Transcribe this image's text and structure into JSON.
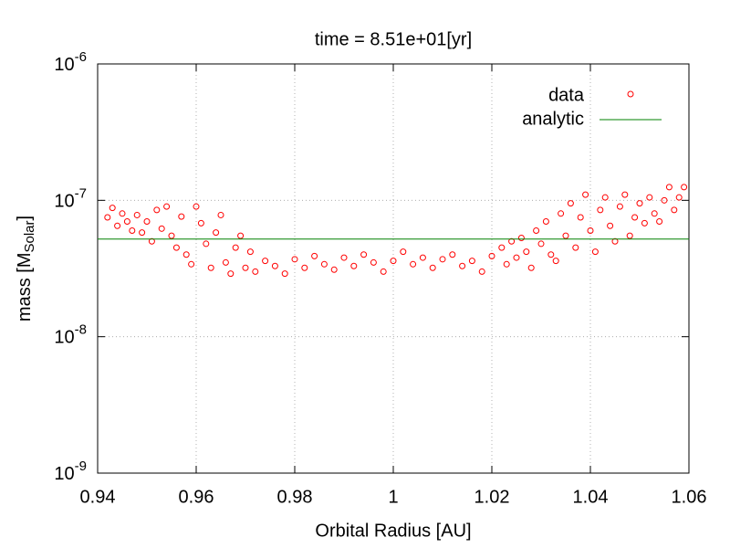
{
  "chart_data": {
    "type": "scatter",
    "title": "time = 8.51e+01[yr]",
    "xlabel": "Orbital Radius [AU]",
    "ylabel": [
      "mass [M",
      "Solar",
      "]"
    ],
    "xlim": [
      0.94,
      1.06
    ],
    "xticks": [
      0.94,
      0.96,
      0.98,
      1,
      1.02,
      1.04,
      1.06
    ],
    "ylim": [
      1e-09,
      1e-06
    ],
    "ylog": true,
    "yticks": [
      {
        "value": 1e-09,
        "label": "10",
        "exponent": "-9"
      },
      {
        "value": 1e-08,
        "label": "10",
        "exponent": "-8"
      },
      {
        "value": 1e-07,
        "label": "10",
        "exponent": "-7"
      },
      {
        "value": 1e-06,
        "label": "10",
        "exponent": "-6"
      }
    ],
    "grid": true,
    "legend": "top-right",
    "series": [
      {
        "name": "data",
        "color": "#ff0000",
        "style": "circle",
        "x": [
          0.942,
          0.943,
          0.944,
          0.945,
          0.946,
          0.947,
          0.948,
          0.949,
          0.95,
          0.951,
          0.952,
          0.953,
          0.954,
          0.955,
          0.956,
          0.957,
          0.958,
          0.959,
          0.96,
          0.961,
          0.962,
          0.963,
          0.964,
          0.965,
          0.966,
          0.967,
          0.968,
          0.969,
          0.97,
          0.971,
          0.972,
          0.974,
          0.976,
          0.978,
          0.98,
          0.982,
          0.984,
          0.986,
          0.988,
          0.99,
          0.992,
          0.994,
          0.996,
          0.998,
          1.0,
          1.002,
          1.004,
          1.006,
          1.008,
          1.01,
          1.012,
          1.014,
          1.016,
          1.018,
          1.02,
          1.022,
          1.023,
          1.024,
          1.025,
          1.026,
          1.027,
          1.028,
          1.029,
          1.03,
          1.031,
          1.032,
          1.033,
          1.034,
          1.035,
          1.036,
          1.037,
          1.038,
          1.039,
          1.04,
          1.041,
          1.042,
          1.043,
          1.044,
          1.045,
          1.046,
          1.047,
          1.048,
          1.049,
          1.05,
          1.051,
          1.052,
          1.053,
          1.054,
          1.055,
          1.056,
          1.057,
          1.058,
          1.059
        ],
        "values": [
          7.5e-08,
          8.8e-08,
          6.5e-08,
          8e-08,
          7e-08,
          6e-08,
          7.8e-08,
          5.8e-08,
          7e-08,
          5e-08,
          8.5e-08,
          6.2e-08,
          9e-08,
          5.5e-08,
          4.5e-08,
          7.6e-08,
          4e-08,
          3.4e-08,
          9e-08,
          6.8e-08,
          4.8e-08,
          3.2e-08,
          5.8e-08,
          7.8e-08,
          3.5e-08,
          2.9e-08,
          4.5e-08,
          5.5e-08,
          3.2e-08,
          4.2e-08,
          3e-08,
          3.6e-08,
          3.3e-08,
          2.9e-08,
          3.7e-08,
          3.2e-08,
          3.9e-08,
          3.4e-08,
          3.1e-08,
          3.8e-08,
          3.3e-08,
          4e-08,
          3.5e-08,
          3e-08,
          3.6e-08,
          4.2e-08,
          3.4e-08,
          3.8e-08,
          3.2e-08,
          3.7e-08,
          4e-08,
          3.3e-08,
          3.6e-08,
          3e-08,
          3.9e-08,
          4.5e-08,
          3.4e-08,
          5e-08,
          3.8e-08,
          5.3e-08,
          4.2e-08,
          3.2e-08,
          6e-08,
          4.8e-08,
          7e-08,
          4e-08,
          3.6e-08,
          8e-08,
          5.5e-08,
          9.5e-08,
          4.5e-08,
          7.5e-08,
          1.1e-07,
          6e-08,
          4.2e-08,
          8.5e-08,
          1.05e-07,
          6.5e-08,
          5e-08,
          9e-08,
          1.1e-07,
          5.5e-08,
          7.5e-08,
          9.5e-08,
          6.8e-08,
          1.05e-07,
          8e-08,
          7e-08,
          1e-07,
          1.25e-07,
          8.5e-08,
          1.05e-07,
          1.25e-07
        ]
      },
      {
        "name": "analytic",
        "color": "#008000",
        "style": "line",
        "x": [
          0.94,
          1.06
        ],
        "values": [
          5.2e-08,
          5.2e-08
        ]
      }
    ]
  }
}
